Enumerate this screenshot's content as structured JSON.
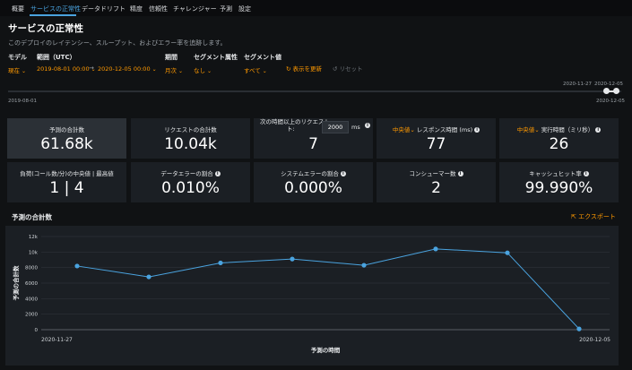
{
  "tabs": [
    {
      "label": "概要",
      "active": false
    },
    {
      "label": "サービスの正常性",
      "active": true
    },
    {
      "label": "データドリフト",
      "active": false
    },
    {
      "label": "精度",
      "active": false
    },
    {
      "label": "信頼性",
      "active": false
    },
    {
      "label": "チャレンジャー",
      "active": false
    },
    {
      "label": "予測",
      "active": false
    },
    {
      "label": "設定",
      "active": false
    }
  ],
  "page": {
    "title": "サービスの正常性",
    "subtitle": "このデプロイのレイテンシー、スループット、およびエラー率を追跡します。"
  },
  "filters": {
    "model_label": "モデル",
    "model_value": "現在",
    "range_label": "範囲（UTC）",
    "range_start": "2019-08-01  00:00",
    "range_end": "2020-12-05  00:00",
    "period_label": "期間",
    "period_value": "月次",
    "segment_attr_label": "セグメント属性",
    "segment_attr_value": "なし",
    "segment_val_label": "セグメント値",
    "segment_val_value": "すべて",
    "refresh_label": "表示を更新",
    "reset_label": "リセット"
  },
  "timeline": {
    "start_label": "2019-08-01",
    "end_label_bottom": "2020-12-05",
    "sel_start_label": "2020-11-27",
    "sel_end_label": "2020-12-05"
  },
  "metrics": [
    {
      "label": "予測の合計数",
      "value": "61.68k"
    },
    {
      "label": "リクエストの合計数",
      "value": "10.04k"
    },
    {
      "label_line1": "次の時間以上のリクエスト",
      "label_line2": "ト:",
      "threshold": "2000",
      "unit": "ms",
      "value": "7"
    },
    {
      "prefix": "中央値",
      "label": "レスポンス時間 (ms)",
      "value": "77"
    },
    {
      "prefix": "中央値",
      "label": "実行時間（ミリ秒）",
      "value": "26"
    },
    {
      "label": "負荷(コール数/分)の中央値 | 最高値",
      "value": "1 | 4"
    },
    {
      "label": "データエラーの割合",
      "value": "0.010%"
    },
    {
      "label": "システムエラーの割合",
      "value": "0.000%"
    },
    {
      "label": "コンシューマー数",
      "value": "2"
    },
    {
      "label": "キャッシュヒット率",
      "value": "99.990%"
    }
  ],
  "chart_section": {
    "title": "予測の合計数",
    "export_label": "エクスポート"
  },
  "chart_data": {
    "type": "line",
    "ylabel": "予測の合計数",
    "xlabel": "予測の時間",
    "yticks": [
      "0",
      "2000",
      "4000",
      "6000",
      "8000",
      "10k",
      "12k"
    ],
    "ylim": [
      0,
      12000
    ],
    "x_start_label": "2020-11-27",
    "x_end_label": "2020-12-05",
    "values": [
      8200,
      6800,
      8600,
      9100,
      8300,
      10400,
      9900,
      100
    ],
    "line_color": "#4aa3df"
  },
  "icons": {
    "caret": "chevron-down-icon",
    "refresh": "refresh-icon",
    "reset": "reset-icon",
    "info": "info-icon",
    "export": "export-icon"
  }
}
